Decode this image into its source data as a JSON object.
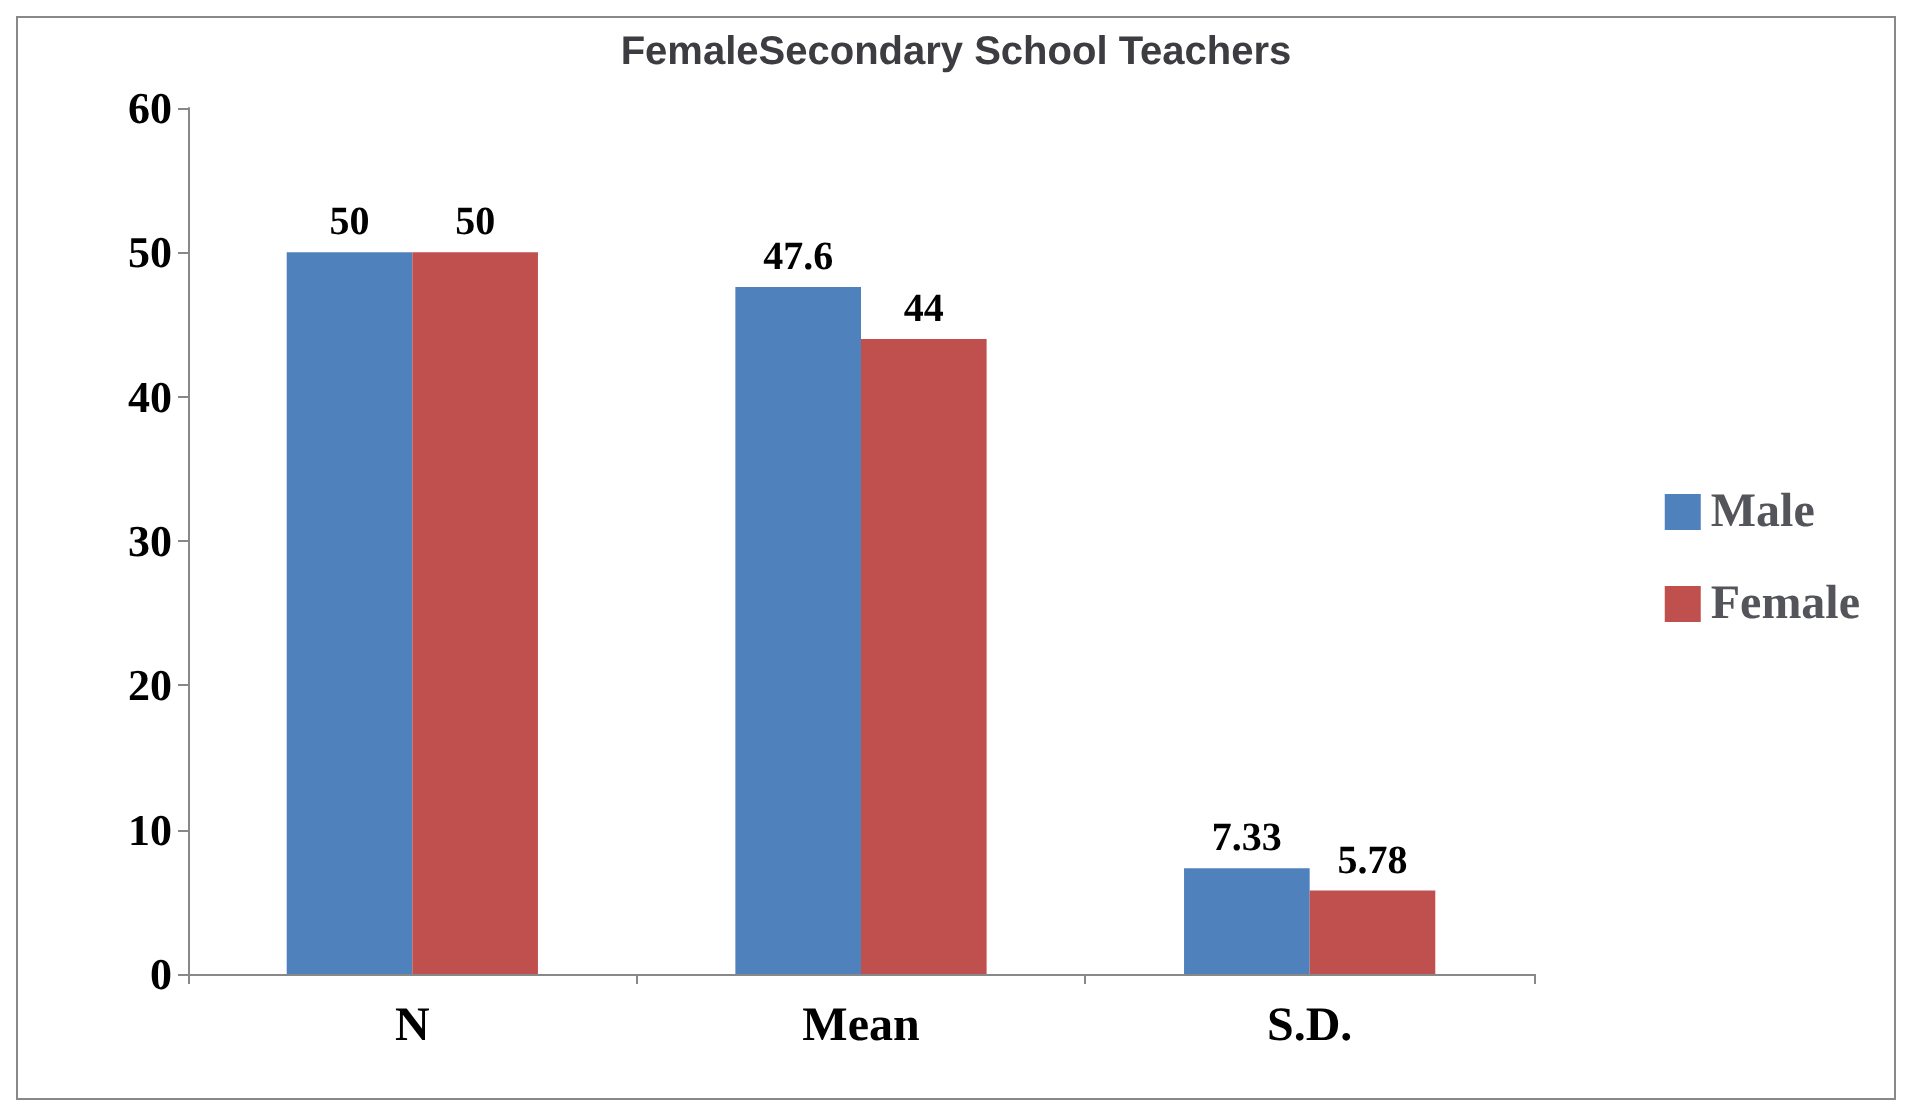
{
  "chart_data": {
    "type": "bar",
    "title": "FemaleSecondary School Teachers",
    "categories": [
      "N",
      "Mean",
      "S.D."
    ],
    "series": [
      {
        "name": "Male",
        "color": "#4f81bd",
        "values": [
          50,
          47.6,
          7.33
        ]
      },
      {
        "name": "Female",
        "color": "#c0504d",
        "values": [
          50,
          44,
          5.78
        ]
      }
    ],
    "ylim": [
      0,
      60
    ],
    "yticks": [
      0,
      10,
      20,
      30,
      40,
      50,
      60
    ],
    "data_labels": true,
    "legend": "right",
    "grid": false
  }
}
